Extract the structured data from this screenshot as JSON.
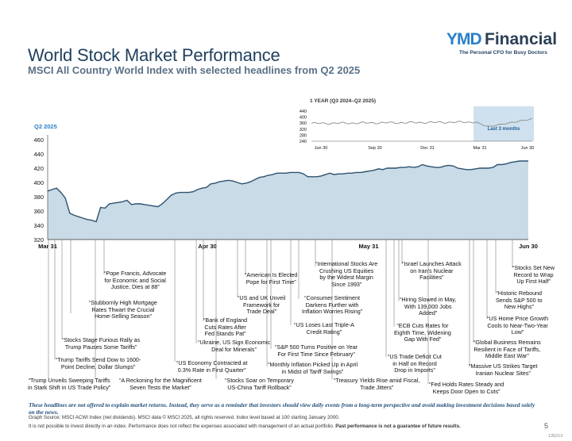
{
  "title": "World Stock Market Performance",
  "subtitle": "MSCI All Country World Index with selected headlines from Q2 2025",
  "logo": {
    "mark": "YMD",
    "name": "Financial",
    "tagline": "The Personal CFO for Busy Doctors"
  },
  "inset": {
    "title": "1 YEAR (Q3 2024–Q2 2025)",
    "highlight_label": "Last 3 months",
    "y_ticks": [
      "440",
      "400",
      "360",
      "320",
      "280",
      "240"
    ],
    "x_ticks": [
      "Jun 30",
      "Sep 30",
      "Dec 31",
      "Mar 31",
      "Jun 30"
    ]
  },
  "chart_data": {
    "type": "area",
    "title": "World Stock Market Performance",
    "series_label": "Q2 2025",
    "ylim": [
      320,
      460
    ],
    "y_ticks": [
      460,
      440,
      420,
      400,
      380,
      360,
      340,
      320
    ],
    "x_ticks": [
      "Mar 31",
      "Apr 30",
      "May 31",
      "Jun 30"
    ],
    "grid": false,
    "values": [
      388,
      390,
      392,
      386,
      378,
      357,
      354,
      352,
      350,
      348,
      347,
      345,
      365,
      364,
      370,
      371,
      372,
      373,
      375,
      369,
      370,
      370,
      369,
      368,
      367,
      366,
      370,
      376,
      382,
      385,
      386,
      386,
      386,
      387,
      390,
      392,
      393,
      398,
      399,
      401,
      402,
      403,
      402,
      400,
      398,
      399,
      401,
      404,
      407,
      408,
      410,
      411,
      413,
      413,
      413,
      414,
      414,
      414,
      412,
      408,
      408,
      408,
      409,
      411,
      413,
      411,
      412,
      412,
      413,
      413,
      414,
      414,
      415,
      416,
      417,
      419,
      418,
      420,
      420,
      420,
      421,
      421,
      422,
      421,
      422,
      425,
      423,
      422,
      421,
      421,
      423,
      424,
      423,
      420,
      419,
      418,
      418,
      419,
      420,
      420,
      420,
      421,
      425,
      425,
      426,
      428,
      429,
      430,
      430,
      430
    ]
  },
  "headlines": [
    {
      "text": "“Trump Unveils Sweeping Tariffs\nin Stark Shift in US Trade Policy”"
    },
    {
      "text": "“Trump Tariffs Send Dow to 1600-\nPoint Decline, Dollar Slumps”"
    },
    {
      "text": "“Stocks Stage Furious Rally as\nTrump Pauses Some Tariffs”"
    },
    {
      "text": "“Stubbornly High Mortgage\nRates Thwart the Crucial\nHome-Selling Season”"
    },
    {
      "text": "“A Reckoning for the Magnificent\nSeven Tests the Market”"
    },
    {
      "text": "“Pope Francis, Advocate\nfor Economic and Social\nJustice, Dies at 88”"
    },
    {
      "text": "“US Economy Contracted at\n0.3% Rate in First Quarter”"
    },
    {
      "text": "“Ukraine, US Sign Economic\nDeal for Minerals”"
    },
    {
      "text": "“Bank of England\nCuts Rates After\nFed Stands Pat”"
    },
    {
      "text": "“Stocks Soar on Temporary\nUS-China Tariff Rollback”"
    },
    {
      "text": "“US and UK Unveil\nFramework for\nTrade Deal”"
    },
    {
      "text": "“American Is Elected\nPope for First Time”"
    },
    {
      "text": "“Monthly Inflation Picked Up in April\nin Midst of Tariff Swings”"
    },
    {
      "text": "“S&P 500 Turns Positive on Year\nFor First Time Since February”"
    },
    {
      "text": "“US Loses Last Triple-A\nCredit Rating”"
    },
    {
      "text": "“Consumer Sentiment\nDarkens Further with\nInflation Worries Rising”"
    },
    {
      "text": "“International Stocks Are\nCrushing US Equities\nby the Widest Margin\nSince 1993”"
    },
    {
      "text": "“Treasury Yields Rise amid Fiscal,\nTrade Jitters”"
    },
    {
      "text": "“US Trade Deficit Cut\nin Half on Record\nDrop in Imports”"
    },
    {
      "text": "“ECB Cuts Rates for\nEighth Time, Widening\nGap With Fed”"
    },
    {
      "text": "“Hiring Slowed in May,\nWith 139,000 Jobs\nAdded”"
    },
    {
      "text": "“Israel Launches Attack\non Iran's Nuclear\nFacilities”"
    },
    {
      "text": "“Fed Holds Rates Steady and\nKeeps Door Open to Cuts”"
    },
    {
      "text": "“Massive US Strikes Target\nIranian Nuclear Sites”"
    },
    {
      "text": "“Global Business Remains\nResilient in Face of Tariffs,\nMiddle East War”"
    },
    {
      "text": "“US Home Price Growth\nCools to Near-Two-Year\nLow”"
    },
    {
      "text": "“Historic Rebound\nSends S&P 500 to\nNew Highs”"
    },
    {
      "text": "“Stocks Set New\nRecord to Wrap\nUp First Half”"
    }
  ],
  "disclaimer": {
    "italic": "These headlines are not offered to explain market returns. Instead, they serve as a reminder that investors should view daily events from a long-term perspective and avoid making investment decisions based solely on the news.",
    "source": "Graph Source: MSCI ACWI Index (net dividends). MSCI data © MSCI 2025, all rights reserved. Index level based at 100 starting January 2000.",
    "note": "It is not possible to invest directly in an index. Performance does not reflect the expenses associated with management of an actual portfolio. ",
    "note_bold": "Past performance is not a guarantee of future results."
  },
  "page_number": "5",
  "code": "135213",
  "colors": {
    "title": "#1f3f5e",
    "area_fill": "#c9dbe6",
    "line": "#2d5270",
    "accent": "#2a7fc8"
  }
}
